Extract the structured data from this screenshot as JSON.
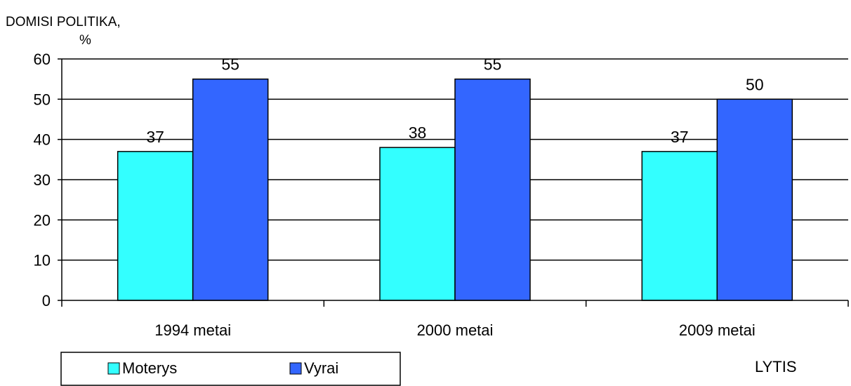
{
  "chart_data": {
    "type": "bar",
    "ylabel_line1": "DOMISI POLITIKA,",
    "ylabel_line2": "%",
    "xlabel": "LYTIS",
    "categories": [
      "1994 metai",
      "2000 metai",
      "2009 metai"
    ],
    "series": [
      {
        "name": "Moterys",
        "values": [
          37,
          38,
          37
        ],
        "color": "#33FFFF"
      },
      {
        "name": "Vyrai",
        "values": [
          55,
          55,
          50
        ],
        "color": "#3366FF"
      }
    ],
    "ylim": [
      0,
      60
    ],
    "yticks": [
      0,
      10,
      20,
      30,
      40,
      50,
      60
    ],
    "grid": true,
    "legend": "bottom-left"
  }
}
